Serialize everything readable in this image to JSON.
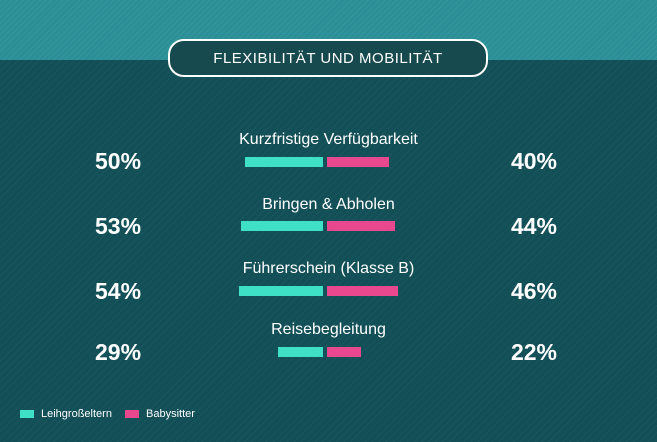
{
  "title": "FLEXIBILITÄT UND MOBILITÄT",
  "colors": {
    "leih": "#3ee0c6",
    "baby": "#e9478e",
    "background": "#124f57",
    "band": "#2a8f96"
  },
  "chart_data": {
    "type": "bar",
    "categories": [
      "Kurzfristige Verfügbarkeit",
      "Bringen & Abholen",
      "Führerschein (Klasse B)",
      "Reisebegleitung"
    ],
    "series": [
      {
        "name": "Leihgroßeltern",
        "values": [
          50,
          53,
          54,
          29
        ],
        "labels": [
          "50%",
          "53%",
          "54%",
          "29%"
        ]
      },
      {
        "name": "Babysitter",
        "values": [
          40,
          44,
          46,
          22
        ],
        "labels": [
          "40%",
          "44%",
          "46%",
          "22%"
        ]
      }
    ]
  }
}
